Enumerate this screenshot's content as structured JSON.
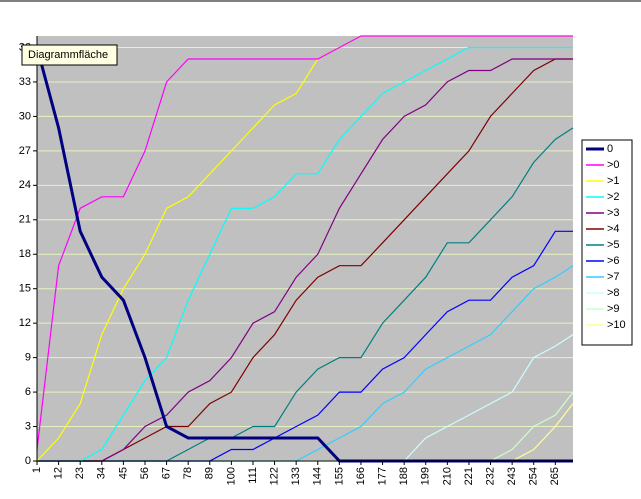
{
  "tooltip": "Diagrammfläche",
  "chart_data": {
    "type": "line",
    "x": [
      1,
      12,
      23,
      34,
      45,
      56,
      67,
      78,
      89,
      100,
      111,
      122,
      133,
      144,
      155,
      166,
      177,
      188,
      199,
      210,
      221,
      232,
      243,
      254,
      265,
      274
    ],
    "xlim": [
      1,
      274
    ],
    "xticks": [
      1,
      12,
      23,
      34,
      45,
      56,
      67,
      78,
      89,
      100,
      111,
      122,
      133,
      144,
      155,
      166,
      177,
      188,
      199,
      210,
      221,
      232,
      243,
      254,
      265
    ],
    "ylim": [
      0,
      37
    ],
    "yticks": [
      0,
      3,
      6,
      9,
      12,
      15,
      18,
      21,
      24,
      27,
      30,
      33,
      36
    ],
    "grid": true,
    "legend": "right",
    "series": [
      {
        "name": "0",
        "color": "#000080",
        "values": [
          36,
          29,
          20,
          16,
          14,
          9,
          3,
          2,
          2,
          2,
          2,
          2,
          2,
          2,
          0,
          0,
          0,
          0,
          0,
          0,
          0,
          0,
          0,
          0,
          0,
          0
        ]
      },
      {
        "name": ">0",
        "color": "#ff00ff",
        "values": [
          1,
          17,
          22,
          23,
          23,
          27,
          33,
          35,
          35,
          35,
          35,
          35,
          35,
          35,
          36,
          37,
          37,
          37,
          37,
          37,
          37,
          37,
          37,
          37,
          37,
          37
        ]
      },
      {
        "name": ">1",
        "color": "#ffff00",
        "values": [
          0,
          2,
          5,
          11,
          15,
          18,
          22,
          23,
          25,
          27,
          29,
          31,
          32,
          35,
          36,
          37,
          37,
          37,
          37,
          37,
          37,
          37,
          37,
          37,
          37,
          37
        ]
      },
      {
        "name": ">2",
        "color": "#00ffff",
        "values": [
          0,
          0,
          0,
          1,
          4,
          7,
          9,
          14,
          18,
          22,
          22,
          23,
          25,
          25,
          28,
          30,
          32,
          33,
          34,
          35,
          36,
          36,
          36,
          36,
          36,
          36
        ]
      },
      {
        "name": ">3",
        "color": "#800080",
        "values": [
          0,
          0,
          0,
          0,
          1,
          3,
          4,
          6,
          7,
          9,
          12,
          13,
          16,
          18,
          22,
          25,
          28,
          30,
          31,
          33,
          34,
          34,
          35,
          35,
          35,
          35
        ]
      },
      {
        "name": ">4",
        "color": "#800000",
        "values": [
          0,
          0,
          0,
          0,
          1,
          2,
          3,
          3,
          5,
          6,
          9,
          11,
          14,
          16,
          17,
          17,
          19,
          21,
          23,
          25,
          27,
          30,
          32,
          34,
          35,
          35
        ]
      },
      {
        "name": ">5",
        "color": "#008080",
        "values": [
          0,
          0,
          0,
          0,
          0,
          0,
          0,
          1,
          2,
          2,
          3,
          3,
          6,
          8,
          9,
          9,
          12,
          14,
          16,
          19,
          19,
          21,
          23,
          26,
          28,
          29
        ]
      },
      {
        "name": ">6",
        "color": "#0000ff",
        "values": [
          0,
          0,
          0,
          0,
          0,
          0,
          0,
          0,
          0,
          1,
          1,
          2,
          3,
          4,
          6,
          6,
          8,
          9,
          11,
          13,
          14,
          14,
          16,
          17,
          20,
          20
        ]
      },
      {
        "name": ">7",
        "color": "#33ccff",
        "values": [
          0,
          0,
          0,
          0,
          0,
          0,
          0,
          0,
          0,
          0,
          0,
          0,
          0,
          1,
          2,
          3,
          5,
          6,
          8,
          9,
          10,
          11,
          13,
          15,
          16,
          17
        ]
      },
      {
        "name": ">8",
        "color": "#ccffff",
        "values": [
          0,
          0,
          0,
          0,
          0,
          0,
          0,
          0,
          0,
          0,
          0,
          0,
          0,
          0,
          0,
          0,
          0,
          0,
          2,
          3,
          4,
          5,
          6,
          9,
          10,
          11
        ]
      },
      {
        "name": ">9",
        "color": "#ccffcc",
        "values": [
          0,
          0,
          0,
          0,
          0,
          0,
          0,
          0,
          0,
          0,
          0,
          0,
          0,
          0,
          0,
          0,
          0,
          0,
          0,
          0,
          0,
          0,
          1,
          3,
          4,
          6
        ]
      },
      {
        "name": ">10",
        "color": "#ffff99",
        "values": [
          0,
          0,
          0,
          0,
          0,
          0,
          0,
          0,
          0,
          0,
          0,
          0,
          0,
          0,
          0,
          0,
          0,
          0,
          0,
          0,
          0,
          0,
          0,
          1,
          3,
          5
        ]
      }
    ]
  }
}
